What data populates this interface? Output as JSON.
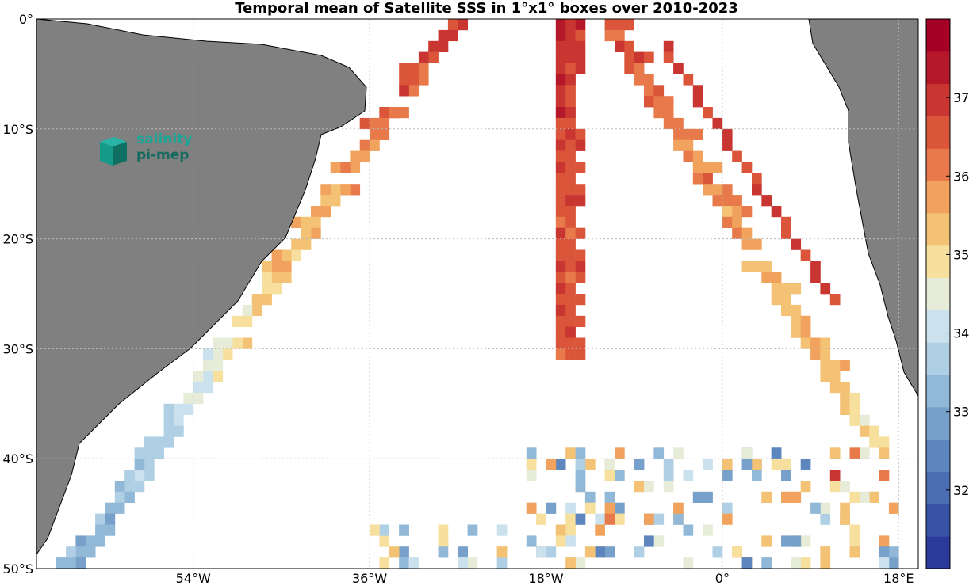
{
  "title": "Temporal mean of Satellite SSS in 1°x1° boxes over 2010-2023",
  "logo": {
    "line1": "salinity",
    "line2": "pi-mep"
  },
  "lat_labels": [
    "0°",
    "10°S",
    "20°S",
    "30°S",
    "40°S",
    "50°S"
  ],
  "lon_labels": [
    "54°W",
    "36°W",
    "18°W",
    "0°",
    "18°E"
  ],
  "colorbar": {
    "ticks": [
      "32",
      "33",
      "34",
      "35",
      "36",
      "37"
    ],
    "stops": [
      "#2b3a9a",
      "#3952a5",
      "#4a6db3",
      "#5d86bf",
      "#77a0ca",
      "#92b8d8",
      "#aecfe4",
      "#cbe2ee",
      "#e6ecd7",
      "#f7df9e",
      "#f4c274",
      "#f1a25c",
      "#e8794b",
      "#db553a",
      "#c93530",
      "#b4182a",
      "#a50026"
    ]
  },
  "chart_data": {
    "type": "heatmap",
    "title": "Temporal mean of Satellite SSS in 1°x1° boxes over 2010-2023",
    "variable": "Satellite SSS",
    "period": "2010-2023",
    "lon_range": [
      -70,
      20
    ],
    "lat_range": [
      -50,
      0
    ],
    "color_range": [
      31,
      38
    ],
    "grid": true,
    "transects": [
      {
        "name": "",
        "from": [
          -27,
          0
        ],
        "to": [
          -66,
          -50
        ],
        "sss_start": 37.0,
        "sss_end": 33.0
      },
      {
        "name": "",
        "from": [
          -17,
          0
        ],
        "to": [
          -17,
          -30
        ],
        "sss_start": 37.0,
        "sss_end": 36.5
      },
      {
        "name": "",
        "from": [
          -12,
          0
        ],
        "to": [
          15,
          -38
        ],
        "sss_start": 36.6,
        "sss_end": 35.0
      }
    ]
  }
}
